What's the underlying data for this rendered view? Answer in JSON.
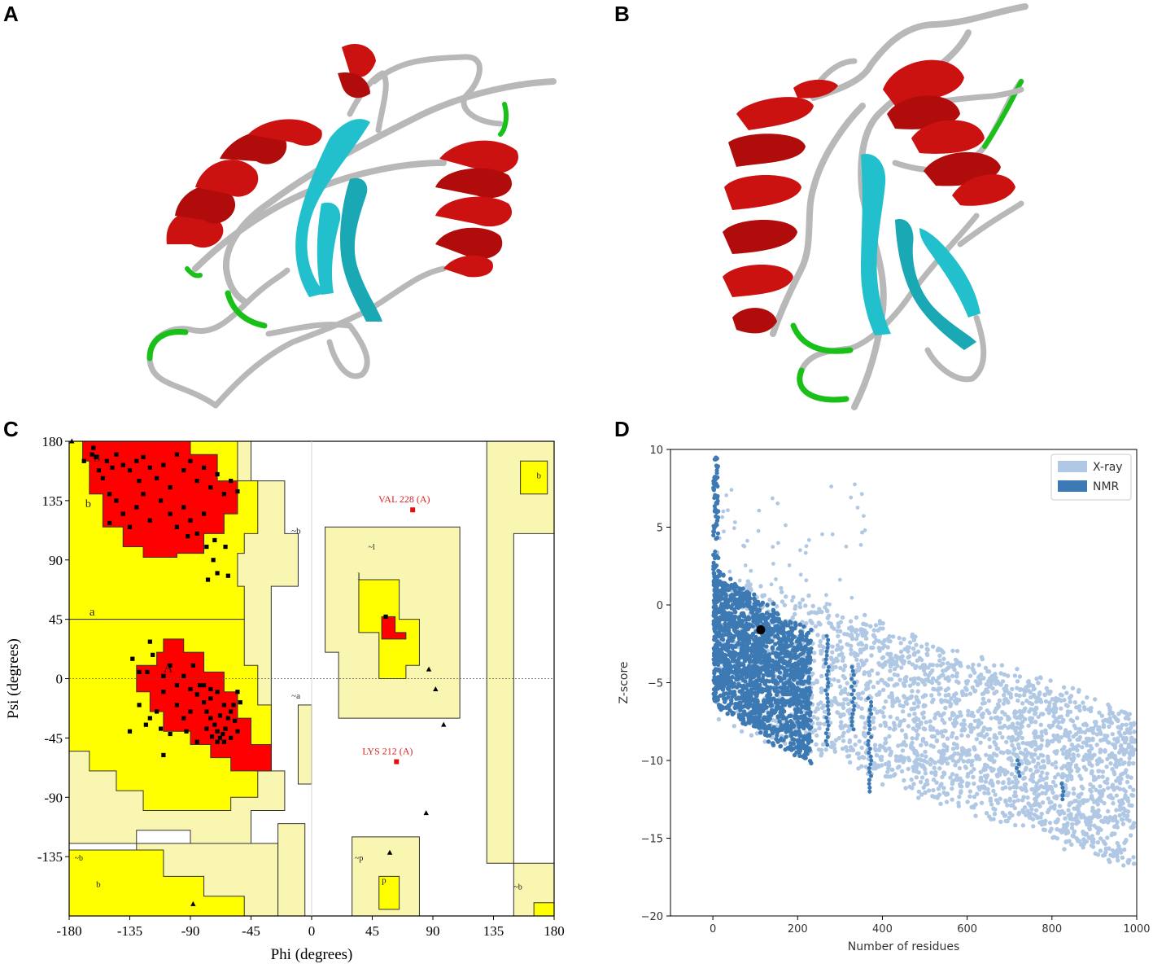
{
  "panels": {
    "A": "A",
    "B": "B",
    "C": "C",
    "D": "D"
  },
  "colors": {
    "helix": "#cc1111",
    "strand": "#22c0cc",
    "coil": "#b8b8b8",
    "turn": "#18c018",
    "core": "#ff0000",
    "allowed": "#ffff00",
    "generous": "#f8f6b0",
    "xray": "#b0c8e4",
    "nmr": "#3d79b3"
  },
  "chart_data": [
    {
      "panel": "C",
      "type": "scatter",
      "xlabel": "Phi (degrees)",
      "ylabel": "Psi (degrees)",
      "xlim": [
        -180,
        180
      ],
      "ylim": [
        -180,
        180
      ],
      "xticks": [
        "-180",
        "-135",
        "-90",
        "-45",
        "0",
        "45",
        "90",
        "135",
        "180"
      ],
      "yticks": [
        "180",
        "135",
        "90",
        "45",
        "0",
        "-45",
        "-90",
        "-135"
      ],
      "region_labels": [
        "B",
        "b",
        "~b",
        "~l",
        "l",
        "a",
        "A",
        "~a",
        "~b",
        "~p",
        "p",
        "b",
        "~b",
        "b"
      ],
      "annotations": [
        {
          "text": "VAL 228 (A)",
          "x": 75,
          "y": 128
        },
        {
          "text": "LYS 212 (A)",
          "x": 63,
          "y": -63
        }
      ],
      "points": [
        [
          -169,
          165
        ],
        [
          -163,
          170
        ],
        [
          -162,
          175
        ],
        [
          -160,
          168
        ],
        [
          -158,
          158
        ],
        [
          -155,
          152
        ],
        [
          -152,
          165
        ],
        [
          -148,
          160
        ],
        [
          -145,
          170
        ],
        [
          -140,
          162
        ],
        [
          -135,
          158
        ],
        [
          -130,
          165
        ],
        [
          -128,
          150
        ],
        [
          -125,
          168
        ],
        [
          -120,
          160
        ],
        [
          -115,
          152
        ],
        [
          -110,
          162
        ],
        [
          -105,
          145
        ],
        [
          -100,
          170
        ],
        [
          -95,
          158
        ],
        [
          -90,
          165
        ],
        [
          -85,
          150
        ],
        [
          -80,
          160
        ],
        [
          -75,
          145
        ],
        [
          -70,
          155
        ],
        [
          -65,
          140
        ],
        [
          -60,
          150
        ],
        [
          -55,
          142
        ],
        [
          -150,
          140
        ],
        [
          -145,
          135
        ],
        [
          -140,
          125
        ],
        [
          -135,
          115
        ],
        [
          -130,
          130
        ],
        [
          -125,
          140
        ],
        [
          -120,
          120
        ],
        [
          -112,
          135
        ],
        [
          -105,
          125
        ],
        [
          -100,
          115
        ],
        [
          -95,
          130
        ],
        [
          -90,
          120
        ],
        [
          -85,
          110
        ],
        [
          -80,
          125
        ],
        [
          -92,
          108
        ],
        [
          -150,
          118
        ],
        [
          -78,
          100
        ],
        [
          -73,
          90
        ],
        [
          -70,
          80
        ],
        [
          -77,
          75
        ],
        [
          -62,
          78
        ],
        [
          -64,
          100
        ],
        [
          -72,
          105
        ],
        [
          -120,
          28
        ],
        [
          -118,
          18
        ],
        [
          -122,
          5
        ],
        [
          -110,
          2
        ],
        [
          -105,
          10
        ],
        [
          -100,
          -5
        ],
        [
          -95,
          2
        ],
        [
          -90,
          -8
        ],
        [
          -85,
          -12
        ],
        [
          -80,
          -18
        ],
        [
          -78,
          -25
        ],
        [
          -75,
          -30
        ],
        [
          -72,
          -35
        ],
        [
          -70,
          -40
        ],
        [
          -68,
          -45
        ],
        [
          -66,
          -42
        ],
        [
          -64,
          -38
        ],
        [
          -62,
          -30
        ],
        [
          -60,
          -25
        ],
        [
          -58,
          -20
        ],
        [
          -65,
          -48
        ],
        [
          -70,
          -48
        ],
        [
          -74,
          -44
        ],
        [
          -60,
          -45
        ],
        [
          -55,
          -40
        ],
        [
          -53,
          -18
        ],
        [
          -95,
          -30
        ],
        [
          -100,
          -20
        ],
        [
          -110,
          -10
        ],
        [
          -115,
          -25
        ],
        [
          -128,
          -20
        ],
        [
          -128,
          5
        ],
        [
          -123,
          -35
        ],
        [
          -85,
          -48
        ],
        [
          -93,
          -40
        ],
        [
          -75,
          -15
        ],
        [
          -88,
          10
        ],
        [
          -120,
          -30
        ],
        [
          -135,
          -40
        ],
        [
          -133,
          15
        ],
        [
          -105,
          -42
        ],
        [
          -83,
          -5
        ],
        [
          -78,
          -38
        ],
        [
          -75,
          -8
        ],
        [
          -68,
          -28
        ],
        [
          -57,
          -32
        ],
        [
          -55,
          -10
        ],
        [
          -110,
          -58
        ],
        [
          -112,
          -38
        ],
        [
          -90,
          -25
        ],
        [
          -80,
          -5
        ],
        [
          -70,
          -10
        ],
        [
          -65,
          -20
        ]
      ],
      "points_highlight": [
        [
          55,
          47
        ]
      ],
      "points_outlier": [
        [
          75,
          128
        ],
        [
          63,
          -63
        ]
      ],
      "points_glycine": [
        [
          -178,
          180
        ],
        [
          87,
          7
        ],
        [
          92,
          -8
        ],
        [
          98,
          -35
        ],
        [
          85,
          -102
        ],
        [
          58,
          -132
        ],
        [
          -88,
          -171
        ]
      ]
    },
    {
      "panel": "D",
      "type": "scatter",
      "xlabel": "Number of residues",
      "ylabel": "Z-score",
      "xlim": [
        -100,
        1000
      ],
      "ylim": [
        -20,
        10
      ],
      "xticks": [
        0,
        200,
        400,
        600,
        800,
        1000
      ],
      "yticks": [
        10,
        5,
        0,
        -5,
        -10,
        -15,
        -20
      ],
      "legend": {
        "position": "top-right",
        "entries": [
          "X-ray",
          "NMR"
        ]
      },
      "series": [
        {
          "name": "X-ray",
          "description_color": "#b0c8e4"
        },
        {
          "name": "NMR",
          "description_color": "#3d79b3"
        }
      ],
      "highlight_point": {
        "x": 113,
        "y": -1.6
      }
    }
  ]
}
